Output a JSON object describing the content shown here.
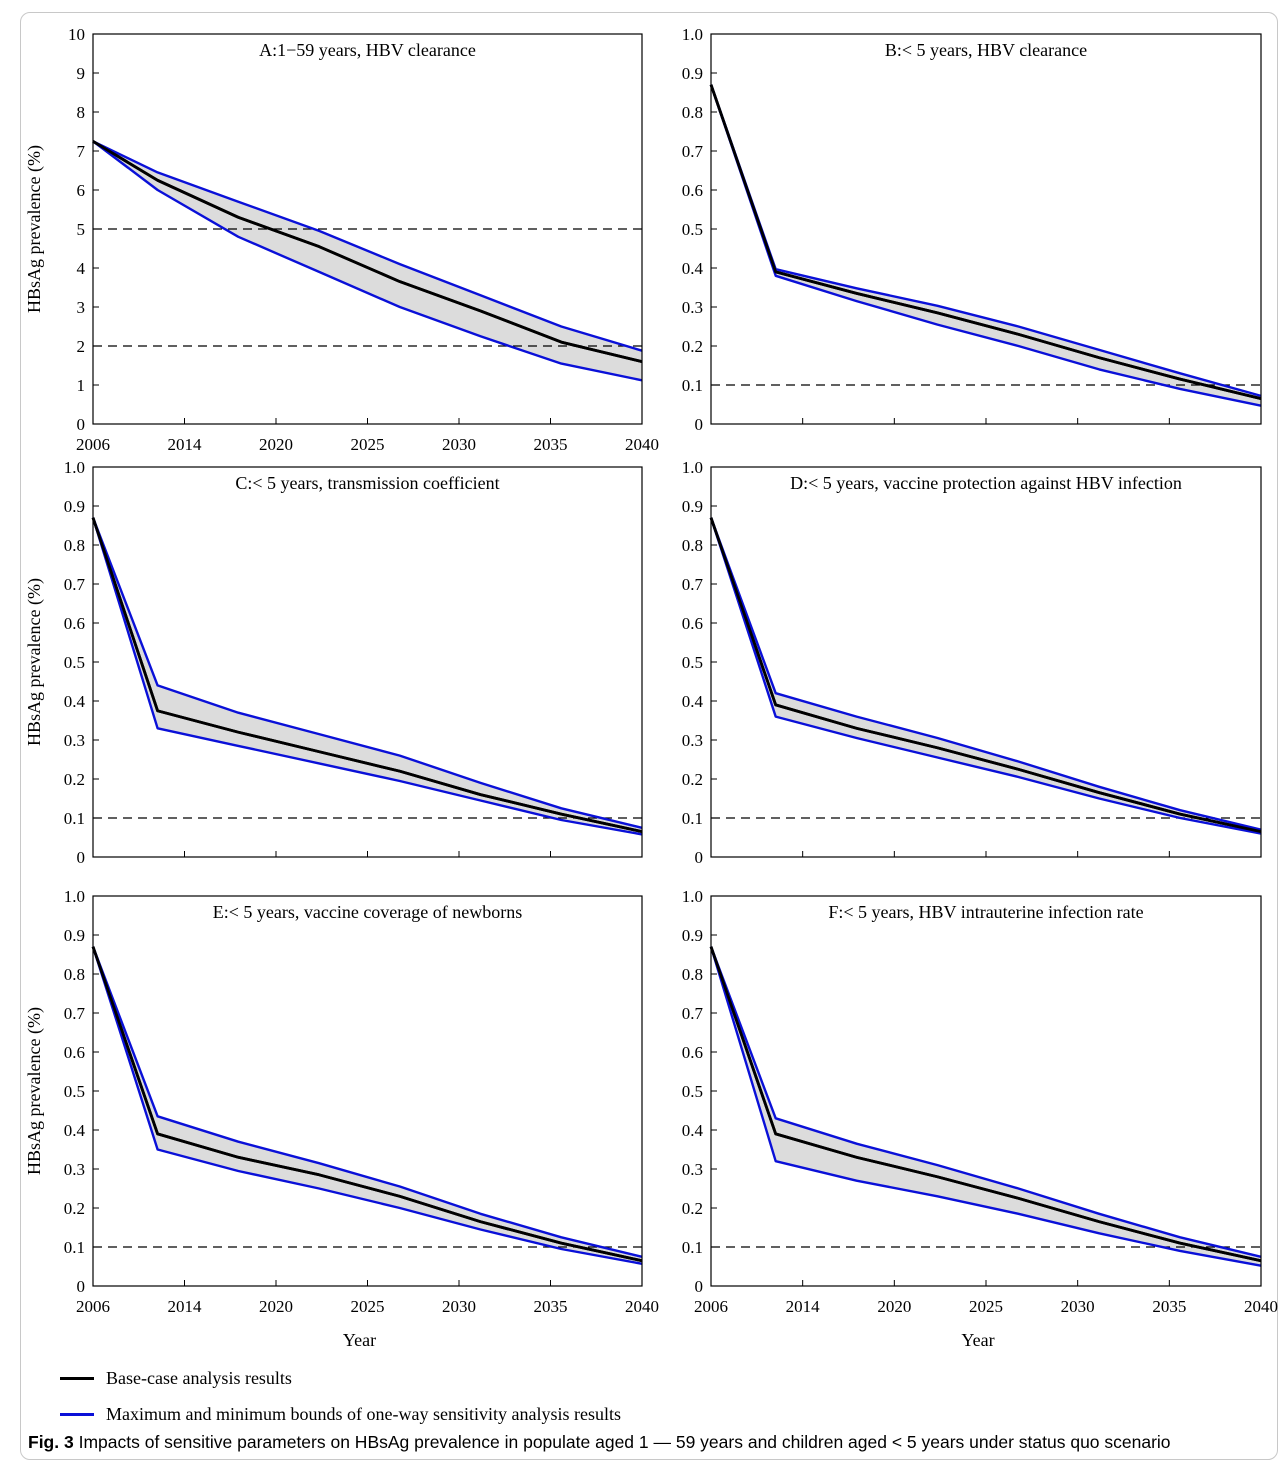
{
  "x_axis_label": "Year",
  "y_axis_label": "HBsAg prevalence (%)",
  "legend": {
    "base_label": "Base-case analysis results",
    "bounds_label": "Maximum and minimum bounds of one-way sensitivity analysis results",
    "base_color": "#000000",
    "bounds_color": "#0a10d8"
  },
  "caption": {
    "label": "Fig. 3",
    "text": "Impacts of sensitive parameters on HBsAg prevalence in populate aged 1 — 59 years and children aged < 5 years under status quo scenario"
  },
  "chart_data": [
    {
      "type": "line",
      "title": "A:1−59 years, HBV clearance",
      "xlim": [
        2006,
        2040
      ],
      "x_ticks": [
        "2006",
        "2014",
        "2020",
        "2025",
        "2030",
        "2035",
        "2040"
      ],
      "ylim": [
        0,
        10
      ],
      "y_ticks": [
        "0",
        "1",
        "2",
        "3",
        "4",
        "5",
        "6",
        "7",
        "8",
        "9",
        "10"
      ],
      "reference_lines": [
        2,
        5
      ],
      "x": [
        2006,
        2010,
        2015,
        2020,
        2025,
        2030,
        2035,
        2040
      ],
      "series": [
        {
          "values": [
            7.25,
            6.25,
            5.3,
            4.55,
            3.65,
            2.9,
            2.1,
            1.6
          ]
        },
        {
          "values": [
            7.25,
            6.45,
            5.7,
            4.95,
            4.1,
            3.3,
            2.5,
            1.88
          ]
        },
        {
          "values": [
            7.25,
            6.0,
            4.8,
            3.9,
            3.0,
            2.25,
            1.55,
            1.12
          ]
        }
      ]
    },
    {
      "type": "line",
      "title": "B:< 5 years, HBV clearance",
      "xlim": [
        2006,
        2040
      ],
      "x_ticks": [],
      "ylim": [
        0,
        1
      ],
      "y_ticks": [
        "0",
        "0.1",
        "0.2",
        "0.3",
        "0.4",
        "0.5",
        "0.6",
        "0.7",
        "0.8",
        "0.9",
        "1.0"
      ],
      "reference_lines": [
        0.1
      ],
      "x": [
        2006,
        2010,
        2015,
        2020,
        2025,
        2030,
        2035,
        2040
      ],
      "series": [
        {
          "values": [
            0.87,
            0.39,
            0.335,
            0.285,
            0.23,
            0.17,
            0.115,
            0.065
          ]
        },
        {
          "values": [
            0.87,
            0.397,
            0.348,
            0.303,
            0.25,
            0.19,
            0.13,
            0.072
          ]
        },
        {
          "values": [
            0.87,
            0.38,
            0.315,
            0.255,
            0.2,
            0.14,
            0.09,
            0.047
          ]
        }
      ]
    },
    {
      "type": "line",
      "title": "C:< 5 years, transmission coefficient",
      "xlim": [
        2006,
        2040
      ],
      "x_ticks": [],
      "ylim": [
        0,
        1
      ],
      "y_ticks": [
        "0",
        "0.1",
        "0.2",
        "0.3",
        "0.4",
        "0.5",
        "0.6",
        "0.7",
        "0.8",
        "0.9",
        "1.0"
      ],
      "reference_lines": [
        0.1
      ],
      "x": [
        2006,
        2010,
        2015,
        2020,
        2025,
        2030,
        2035,
        2040
      ],
      "series": [
        {
          "values": [
            0.87,
            0.375,
            0.32,
            0.27,
            0.22,
            0.16,
            0.11,
            0.065
          ]
        },
        {
          "values": [
            0.87,
            0.44,
            0.37,
            0.315,
            0.26,
            0.19,
            0.125,
            0.075
          ]
        },
        {
          "values": [
            0.87,
            0.33,
            0.285,
            0.24,
            0.195,
            0.145,
            0.095,
            0.058
          ]
        }
      ]
    },
    {
      "type": "line",
      "title": "D:< 5 years, vaccine protection against HBV infection",
      "xlim": [
        2006,
        2040
      ],
      "x_ticks": [],
      "ylim": [
        0,
        1
      ],
      "y_ticks": [
        "0",
        "0.1",
        "0.2",
        "0.3",
        "0.4",
        "0.5",
        "0.6",
        "0.7",
        "0.8",
        "0.9",
        "1.0"
      ],
      "reference_lines": [
        0.1
      ],
      "x": [
        2006,
        2010,
        2015,
        2020,
        2025,
        2030,
        2035,
        2040
      ],
      "series": [
        {
          "values": [
            0.87,
            0.39,
            0.33,
            0.28,
            0.225,
            0.165,
            0.11,
            0.065
          ]
        },
        {
          "values": [
            0.87,
            0.42,
            0.36,
            0.305,
            0.245,
            0.18,
            0.12,
            0.07
          ]
        },
        {
          "values": [
            0.87,
            0.36,
            0.305,
            0.255,
            0.205,
            0.15,
            0.1,
            0.06
          ]
        }
      ]
    },
    {
      "type": "line",
      "title": "E:< 5 years, vaccine coverage of newborns",
      "xlim": [
        2006,
        2040
      ],
      "x_ticks": [
        "2006",
        "2014",
        "2020",
        "2025",
        "2030",
        "2035",
        "2040"
      ],
      "ylim": [
        0,
        1
      ],
      "y_ticks": [
        "0",
        "0.1",
        "0.2",
        "0.3",
        "0.4",
        "0.5",
        "0.6",
        "0.7",
        "0.8",
        "0.9",
        "1.0"
      ],
      "reference_lines": [
        0.1
      ],
      "x": [
        2006,
        2010,
        2015,
        2020,
        2025,
        2030,
        2035,
        2040
      ],
      "series": [
        {
          "values": [
            0.87,
            0.39,
            0.33,
            0.285,
            0.23,
            0.165,
            0.11,
            0.065
          ]
        },
        {
          "values": [
            0.87,
            0.435,
            0.37,
            0.315,
            0.255,
            0.185,
            0.125,
            0.075
          ]
        },
        {
          "values": [
            0.87,
            0.35,
            0.295,
            0.25,
            0.2,
            0.145,
            0.095,
            0.057
          ]
        }
      ]
    },
    {
      "type": "line",
      "title": "F:< 5 years, HBV intrauterine infection rate",
      "xlim": [
        2006,
        2040
      ],
      "x_ticks": [
        "2006",
        "2014",
        "2020",
        "2025",
        "2030",
        "2035",
        "2040"
      ],
      "ylim": [
        0,
        1
      ],
      "y_ticks": [
        "0",
        "0.1",
        "0.2",
        "0.3",
        "0.4",
        "0.5",
        "0.6",
        "0.7",
        "0.8",
        "0.9",
        "1.0"
      ],
      "reference_lines": [
        0.1
      ],
      "x": [
        2006,
        2010,
        2015,
        2020,
        2025,
        2030,
        2035,
        2040
      ],
      "series": [
        {
          "values": [
            0.87,
            0.39,
            0.33,
            0.28,
            0.225,
            0.165,
            0.11,
            0.065
          ]
        },
        {
          "values": [
            0.87,
            0.43,
            0.365,
            0.31,
            0.25,
            0.185,
            0.125,
            0.075
          ]
        },
        {
          "values": [
            0.87,
            0.32,
            0.27,
            0.23,
            0.185,
            0.135,
            0.09,
            0.052
          ]
        }
      ]
    }
  ]
}
